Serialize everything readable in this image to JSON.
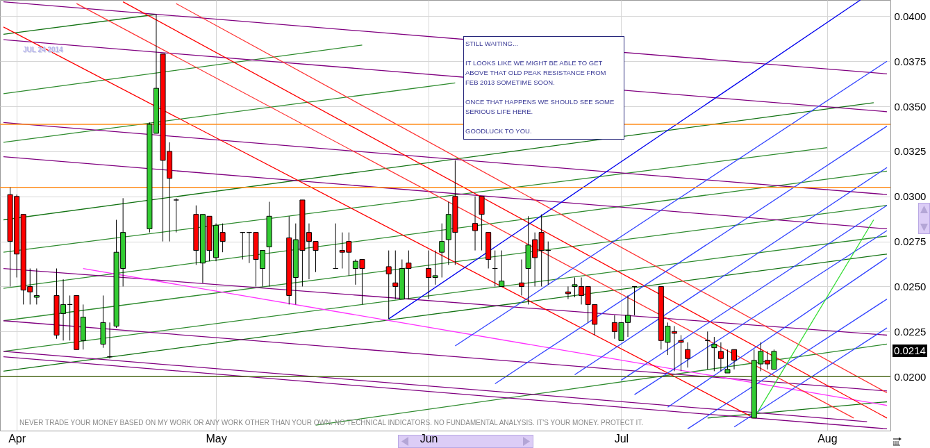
{
  "chart_data": {
    "type": "candlestick",
    "subtitle": "JUL 24 2014",
    "x": [
      "2014-03-31",
      "2014-04-01",
      "2014-04-02",
      "2014-04-03",
      "2014-04-04",
      "2014-04-07",
      "2014-04-08",
      "2014-04-09",
      "2014-04-10",
      "2014-04-11",
      "2014-04-14",
      "2014-04-15",
      "2014-04-16",
      "2014-04-17",
      "2014-04-21",
      "2014-04-22",
      "2014-04-23",
      "2014-04-24",
      "2014-04-25",
      "2014-04-28",
      "2014-04-29",
      "2014-04-30",
      "2014-05-01",
      "2014-05-02",
      "2014-05-05",
      "2014-05-06",
      "2014-05-07",
      "2014-05-08",
      "2014-05-09",
      "2014-05-12",
      "2014-05-13",
      "2014-05-14",
      "2014-05-15",
      "2014-05-16",
      "2014-05-19",
      "2014-05-20",
      "2014-05-21",
      "2014-05-22",
      "2014-05-23",
      "2014-05-27",
      "2014-05-28",
      "2014-05-29",
      "2014-05-30",
      "2014-06-02",
      "2014-06-03",
      "2014-06-04",
      "2014-06-05",
      "2014-06-06",
      "2014-06-09",
      "2014-06-10",
      "2014-06-11",
      "2014-06-12",
      "2014-06-13",
      "2014-06-16",
      "2014-06-17",
      "2014-06-18",
      "2014-06-19",
      "2014-06-20",
      "2014-06-23",
      "2014-06-24",
      "2014-06-25",
      "2014-06-26",
      "2014-06-27",
      "2014-06-30",
      "2014-07-01",
      "2014-07-02",
      "2014-07-03",
      "2014-07-07",
      "2014-07-08",
      "2014-07-09",
      "2014-07-10",
      "2014-07-11",
      "2014-07-14",
      "2014-07-15",
      "2014-07-16",
      "2014-07-17",
      "2014-07-18",
      "2014-07-21",
      "2014-07-22",
      "2014-07-23",
      "2014-07-24"
    ],
    "ohlc": [
      [
        0.0301,
        0.0305,
        0.025,
        0.0275
      ],
      [
        0.03,
        0.0301,
        0.0255,
        0.0268
      ],
      [
        0.029,
        0.029,
        0.024,
        0.0248
      ],
      [
        0.025,
        0.026,
        0.024,
        0.0247
      ],
      [
        0.0244,
        0.026,
        0.024,
        0.0245
      ],
      [
        0.0245,
        0.026,
        0.0221,
        0.0223
      ],
      [
        0.0235,
        0.0254,
        0.022,
        0.024
      ],
      [
        0.024,
        0.0245,
        0.022,
        0.024
      ],
      [
        0.0245,
        0.0245,
        0.0215,
        0.0215
      ],
      [
        0.022,
        0.024,
        0.0215,
        0.0233
      ],
      [
        0.0218,
        0.0245,
        0.0216,
        0.023
      ],
      [
        0.0211,
        0.023,
        0.021,
        0.0211
      ],
      [
        0.0228,
        0.0287,
        0.0227,
        0.0269
      ],
      [
        0.026,
        0.0299,
        0.025,
        0.028
      ],
      [
        0.0282,
        0.0341,
        0.028,
        0.034
      ],
      [
        0.0335,
        0.0401,
        0.0335,
        0.036
      ],
      [
        0.0379,
        0.0379,
        0.0275,
        0.032
      ],
      [
        0.0325,
        0.033,
        0.0275,
        0.031
      ],
      [
        0.0298,
        0.0299,
        0.028,
        0.0298
      ],
      [
        0.029,
        0.0295,
        0.0262,
        0.027
      ],
      [
        0.0263,
        0.029,
        0.0252,
        0.029
      ],
      [
        0.0289,
        0.0289,
        0.0264,
        0.027
      ],
      [
        0.0266,
        0.0285,
        0.0264,
        0.0284
      ],
      [
        0.028,
        0.0285,
        0.0269,
        0.0275
      ],
      [
        0.028,
        0.028,
        0.0265,
        0.028
      ],
      [
        0.028,
        0.028,
        0.0263,
        0.028
      ],
      [
        0.028,
        0.028,
        0.025,
        0.0265
      ],
      [
        0.026,
        0.027,
        0.025,
        0.027
      ],
      [
        0.0272,
        0.0297,
        0.025,
        0.0289
      ],
      [
        0.0277,
        0.0289,
        0.024,
        0.0245
      ],
      [
        0.0255,
        0.0285,
        0.024,
        0.0276
      ],
      [
        0.0298,
        0.0298,
        0.025,
        0.027
      ],
      [
        0.028,
        0.0285,
        0.0254,
        0.0275
      ],
      [
        0.0275,
        0.0275,
        0.0258,
        0.027
      ],
      [
        0.026,
        0.0285,
        0.026,
        0.026
      ],
      [
        0.027,
        0.028,
        0.026,
        0.0269
      ],
      [
        0.0275,
        0.028,
        0.0256,
        0.0269
      ],
      [
        0.026,
        0.0265,
        0.0251,
        0.0264
      ],
      [
        0.0265,
        0.0265,
        0.024,
        0.026
      ],
      [
        0.0261,
        0.027,
        0.0232,
        0.0257
      ],
      [
        0.0252,
        0.027,
        0.0243,
        0.025
      ],
      [
        0.0243,
        0.0265,
        0.0243,
        0.026
      ],
      [
        0.0263,
        0.027,
        0.0243,
        0.026
      ],
      [
        0.026,
        0.027,
        0.0243,
        0.0255
      ],
      [
        0.0255,
        0.027,
        0.0251,
        0.0256
      ],
      [
        0.0269,
        0.0285,
        0.0255,
        0.0275
      ],
      [
        0.0276,
        0.0297,
        0.0262,
        0.029
      ],
      [
        0.03,
        0.032,
        0.0262,
        0.028
      ],
      [
        0.0285,
        0.03,
        0.027,
        0.0281
      ],
      [
        0.03,
        0.03,
        0.027,
        0.029
      ],
      [
        0.028,
        0.028,
        0.026,
        0.0265
      ],
      [
        0.026,
        0.027,
        0.025,
        0.026
      ],
      [
        0.025,
        0.027,
        0.025,
        0.0253
      ],
      [
        0.0252,
        0.0265,
        0.0245,
        0.025
      ],
      [
        0.026,
        0.0289,
        0.024,
        0.0273
      ],
      [
        0.0276,
        0.028,
        0.025,
        0.0266
      ],
      [
        0.028,
        0.029,
        0.025,
        0.027
      ],
      [
        0.027,
        0.0275,
        0.0251,
        0.027
      ],
      [
        0.0247,
        0.025,
        0.0243,
        0.0246
      ],
      [
        0.025,
        0.0255,
        0.0244,
        0.0251
      ],
      [
        0.025,
        0.0255,
        0.024,
        0.0245
      ],
      [
        0.025,
        0.025,
        0.023,
        0.024
      ],
      [
        0.024,
        0.024,
        0.0223,
        0.0229
      ],
      [
        0.023,
        0.0234,
        0.0221,
        0.0225
      ],
      [
        0.022,
        0.023,
        0.022,
        0.023
      ],
      [
        0.023,
        0.0245,
        0.0222,
        0.0234
      ],
      [
        0.025,
        0.025,
        0.0234,
        0.025
      ],
      [
        0.025,
        0.025,
        0.0215,
        0.022
      ],
      [
        0.0219,
        0.023,
        0.0212,
        0.0228
      ],
      [
        0.0225,
        0.0228,
        0.0203,
        0.0224
      ],
      [
        0.022,
        0.0223,
        0.0203,
        0.0219
      ],
      [
        0.0215,
        0.0219,
        0.0205,
        0.021
      ],
      [
        0.022,
        0.0225,
        0.0204,
        0.022
      ],
      [
        0.0216,
        0.0222,
        0.0203,
        0.0218
      ],
      [
        0.0214,
        0.0219,
        0.0203,
        0.021
      ],
      [
        0.0202,
        0.0215,
        0.0202,
        0.0204
      ],
      [
        0.0215,
        0.0215,
        0.0204,
        0.0209
      ],
      [
        0.0177,
        0.0215,
        0.0177,
        0.0209
      ],
      [
        0.0207,
        0.0219,
        0.0203,
        0.0214
      ],
      [
        0.0209,
        0.0214,
        0.0204,
        0.0207
      ],
      [
        0.0204,
        0.0215,
        0.0204,
        0.0214
      ]
    ],
    "colors": [
      "#ff0000",
      "#ff0000",
      "#ff0000",
      "#ff0000",
      "#33cc33",
      "#ff0000",
      "#33cc33",
      "#000000",
      "#ff0000",
      "#33cc33",
      "#33cc33",
      "#000000",
      "#33cc33",
      "#33cc33",
      "#33cc33",
      "#33cc33",
      "#ff0000",
      "#ff0000",
      "#000000",
      "#ff0000",
      "#33cc33",
      "#ff0000",
      "#33cc33",
      "#ff0000",
      "#000000",
      "#000000",
      "#ff0000",
      "#33cc33",
      "#33cc33",
      "#ff0000",
      "#33cc33",
      "#ff0000",
      "#ff0000",
      "#ff0000",
      "#000000",
      "#ff0000",
      "#ff0000",
      "#33cc33",
      "#ff0000",
      "#ff0000",
      "#ff0000",
      "#33cc33",
      "#ff0000",
      "#ff0000",
      "#33cc33",
      "#33cc33",
      "#33cc33",
      "#ff0000",
      "#ff0000",
      "#ff0000",
      "#ff0000",
      "#000000",
      "#33cc33",
      "#ff0000",
      "#33cc33",
      "#ff0000",
      "#ff0000",
      "#000000",
      "#ff0000",
      "#33cc33",
      "#ff0000",
      "#ff0000",
      "#ff0000",
      "#ff0000",
      "#33cc33",
      "#33cc33",
      "#000000",
      "#ff0000",
      "#33cc33",
      "#ff0000",
      "#ff0000",
      "#ff0000",
      "#000000",
      "#33cc33",
      "#ff0000",
      "#33cc33",
      "#ff0000",
      "#33cc33",
      "#33cc33",
      "#ff0000",
      "#33cc33"
    ],
    "series": [
      {
        "type": "line",
        "color": "#137313",
        "x": [
          "2014-03-30",
          "2014-04-22"
        ],
        "values": [
          0.039,
          0.0401
        ]
      },
      {
        "type": "line",
        "color": "#137313",
        "x": [
          "2014-03-30",
          "2014-08-08"
        ],
        "values": [
          0.0287,
          0.0352
        ]
      },
      {
        "type": "line",
        "color": "#137313",
        "x": [
          "2014-03-30",
          "2014-08-10"
        ],
        "values": [
          0.0203,
          0.0268
        ]
      },
      {
        "type": "line",
        "color": "#137313",
        "x": [
          "2014-07-14",
          "2014-08-10"
        ],
        "values": [
          0.0177,
          0.0186
        ]
      },
      {
        "type": "line",
        "color": "#2e8b2e",
        "x": [
          "2014-03-30",
          "2014-05-23"
        ],
        "values": [
          0.0357,
          0.0384
        ]
      },
      {
        "type": "line",
        "color": "#2e8b2e",
        "x": [
          "2014-03-30",
          "2014-06-06"
        ],
        "values": [
          0.033,
          0.0363
        ]
      },
      {
        "type": "line",
        "color": "#2e8b2e",
        "x": [
          "2014-03-30",
          "2014-08-01"
        ],
        "values": [
          0.0269,
          0.0327
        ]
      },
      {
        "type": "line",
        "color": "#2e8b2e",
        "x": [
          "2014-03-30",
          "2014-08-10"
        ],
        "values": [
          0.0249,
          0.0314
        ]
      },
      {
        "type": "line",
        "color": "#2e8b2e",
        "x": [
          "2014-03-30",
          "2014-08-10"
        ],
        "values": [
          0.0231,
          0.0295
        ]
      },
      {
        "type": "line",
        "color": "#2e8b2e",
        "x": [
          "2014-03-30",
          "2014-08-10"
        ],
        "values": [
          0.0214,
          0.0278
        ]
      },
      {
        "type": "line",
        "color": "#2e8b2e",
        "x": [
          "2014-05-16",
          "2014-08-10"
        ],
        "values": [
          0.0173,
          0.0218
        ]
      },
      {
        "type": "line",
        "color": "#800080",
        "x": [
          "2014-03-30",
          "2014-08-10"
        ],
        "values": [
          0.0408,
          0.0368
        ]
      },
      {
        "type": "line",
        "color": "#800080",
        "x": [
          "2014-03-30",
          "2014-08-10"
        ],
        "values": [
          0.0387,
          0.0347
        ]
      },
      {
        "type": "line",
        "color": "#800080",
        "x": [
          "2014-03-30",
          "2014-08-10"
        ],
        "values": [
          0.0341,
          0.0301
        ]
      },
      {
        "type": "line",
        "color": "#800080",
        "x": [
          "2014-03-30",
          "2014-08-10"
        ],
        "values": [
          0.0322,
          0.0282
        ]
      },
      {
        "type": "line",
        "color": "#800080",
        "x": [
          "2014-03-30",
          "2014-08-10"
        ],
        "values": [
          0.026,
          0.0223
        ]
      },
      {
        "type": "line",
        "color": "#800080",
        "x": [
          "2014-03-30",
          "2014-08-10"
        ],
        "values": [
          0.0231,
          0.0192
        ]
      },
      {
        "type": "line",
        "color": "#800080",
        "x": [
          "2014-03-30",
          "2014-08-10"
        ],
        "values": [
          0.0211,
          0.0171
        ]
      },
      {
        "type": "line",
        "color": "#800080",
        "x": [
          "2014-03-30",
          "2014-08-07"
        ],
        "values": [
          0.0214,
          0.0175
        ]
      },
      {
        "type": "line",
        "color": "#ff33ff",
        "x": [
          "2014-04-11",
          "2014-08-10"
        ],
        "values": [
          0.026,
          0.0184
        ]
      },
      {
        "type": "line",
        "color": "#ff0000",
        "x": [
          "2014-03-30",
          "2014-07-21"
        ],
        "values": [
          0.0394,
          0.0177
        ]
      },
      {
        "type": "line",
        "color": "#ff0000",
        "x": [
          "2014-04-17",
          "2014-08-10"
        ],
        "values": [
          0.0408,
          0.0177
        ]
      },
      {
        "type": "line",
        "color": "#ff3333",
        "x": [
          "2014-04-10",
          "2014-08-05"
        ],
        "values": [
          0.0407,
          0.0177
        ]
      },
      {
        "type": "line",
        "color": "#ff3333",
        "x": [
          "2014-04-25",
          "2014-08-10"
        ],
        "values": [
          0.0407,
          0.0191
        ]
      },
      {
        "type": "line",
        "color": "#0000ee",
        "x": [
          "2014-05-27",
          "2014-08-06"
        ],
        "values": [
          0.0232,
          0.0409
        ]
      },
      {
        "type": "line",
        "color": "#3344ff",
        "x": [
          "2014-06-06",
          "2014-08-10"
        ],
        "values": [
          0.0217,
          0.0375
        ]
      },
      {
        "type": "line",
        "color": "#3344ff",
        "x": [
          "2014-06-12",
          "2014-08-10"
        ],
        "values": [
          0.0196,
          0.0339
        ]
      },
      {
        "type": "line",
        "color": "#3344ff",
        "x": [
          "2014-06-24",
          "2014-08-10"
        ],
        "values": [
          0.0201,
          0.0316
        ]
      },
      {
        "type": "line",
        "color": "#3344ff",
        "x": [
          "2014-07-01",
          "2014-08-10"
        ],
        "values": [
          0.0198,
          0.0295
        ]
      },
      {
        "type": "line",
        "color": "#3344ff",
        "x": [
          "2014-07-03",
          "2014-08-10"
        ],
        "values": [
          0.019,
          0.0281
        ]
      },
      {
        "type": "line",
        "color": "#3344ff",
        "x": [
          "2014-07-08",
          "2014-08-10"
        ],
        "values": [
          0.0183,
          0.0266
        ]
      },
      {
        "type": "line",
        "color": "#3344ff",
        "x": [
          "2014-07-11",
          "2014-08-10"
        ],
        "values": [
          0.0171,
          0.0243
        ]
      },
      {
        "type": "line",
        "color": "#3344ff",
        "x": [
          "2014-07-18",
          "2014-08-10"
        ],
        "values": [
          0.0172,
          0.0227
        ]
      },
      {
        "type": "line",
        "color": "#33dd33",
        "x": [
          "2014-07-21",
          "2014-08-08"
        ],
        "values": [
          0.0177,
          0.0287
        ]
      }
    ],
    "ref_lines": [
      {
        "axis": "y",
        "value": 0.034,
        "color": "#ff8c1a"
      },
      {
        "axis": "y",
        "value": 0.0305,
        "color": "#ff8c1a"
      },
      {
        "axis": "y",
        "value": 0.02,
        "color": "#4f6b1f"
      }
    ],
    "annotations": [
      "STILL WAITING...\n\nIT LOOKS LIKE WE MIGHT BE ABLE TO GET\nABOVE THAT OLD PEAK RESISTANCE FROM\nFEB 2013 SOMETIME SOON.\n\nONCE THAT HAPPENS WE SHOULD SEE SOME\nSERIOUS LIFE HERE.\n\nGOODLUCK TO YOU.",
      "NEVER TRADE YOUR MONEY BASED ON MY WORK OR ANY WORK OTHER THAN YOUR OWN. NO TECHNICAL INDICATORS. NO FUNDAMENTAL ANALYSIS. IT'S YOUR MONEY. PROTECT IT.",
      "0.0214"
    ],
    "xlim": [
      "2014-03-30",
      "2014-08-10"
    ],
    "xticks": [
      {
        "value": "2014-04-01",
        "label": "Apr"
      },
      {
        "value": "2014-05-01",
        "label": "May"
      },
      {
        "value": "2014-06-02",
        "label": "Jun"
      },
      {
        "value": "2014-07-01",
        "label": "Jul"
      },
      {
        "value": "2014-08-01",
        "label": "Aug"
      }
    ],
    "ylim": [
      0.017,
      0.0409
    ],
    "yticks": [
      {
        "value": 0.02,
        "label": "0.0200"
      },
      {
        "value": 0.0225,
        "label": "0.0225"
      },
      {
        "value": 0.025,
        "label": "0.0250"
      },
      {
        "value": 0.0275,
        "label": "0.0275"
      },
      {
        "value": 0.03,
        "label": "0.0300"
      },
      {
        "value": 0.0325,
        "label": "0.0325"
      },
      {
        "value": 0.035,
        "label": "0.0350"
      },
      {
        "value": 0.0375,
        "label": "0.0375"
      },
      {
        "value": 0.04,
        "label": "0.0400"
      }
    ],
    "grid": true
  }
}
